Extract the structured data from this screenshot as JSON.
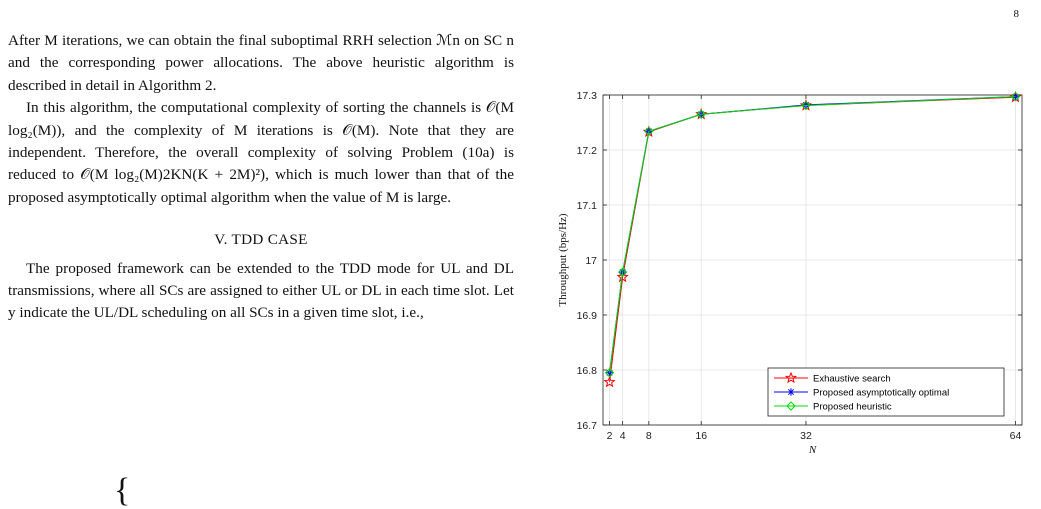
{
  "page": {
    "number": "8"
  },
  "text": {
    "p1": "After M iterations, we can obtain the final suboptimal RRH selection ℳn on SC n and the corresponding power allocations. The above heuristic algorithm is described in detail in Algorithm 2.",
    "p2": "In this algorithm, the computational complexity of sorting the channels is 𝒪(M log₂(M)), and the complexity of M iterations is 𝒪(M). Note that they are independent. Therefore, the overall complexity of solving Problem (10a) is reduced to 𝒪(M log₂(M)2KN(K + 2M)²), which is much lower than that of the proposed asymptotically optimal algorithm when the value of M is large.",
    "heading": "V. TDD CASE",
    "p3": "The proposed framework can be extended to the TDD mode for UL and DL transmissions, where all SCs are assigned to either UL or DL in each time slot. Let y indicate the UL/DL scheduling on all SCs in a given time slot, i.e.,"
  },
  "chart_data": {
    "type": "line",
    "xlabel": "N",
    "ylabel": "Throughput (bps/Hz)",
    "x": [
      2,
      4,
      8,
      16,
      32,
      64
    ],
    "xticks": [
      2,
      4,
      8,
      16,
      32,
      64
    ],
    "yticks": [
      16.7,
      16.8,
      16.9,
      17,
      17.1,
      17.2,
      17.3
    ],
    "yticklabels": [
      "16.7",
      "16.8",
      "16.9",
      "17",
      "17.1",
      "17.2",
      "17.3"
    ],
    "xlim": [
      1,
      65
    ],
    "ylim": [
      16.7,
      17.3
    ],
    "grid": true,
    "legend_position": "bottom-right",
    "series": [
      {
        "name": "Exhaustive search",
        "color": "#ff0000",
        "marker": "star",
        "values": [
          16.778,
          16.969,
          17.233,
          17.265,
          17.281,
          17.296
        ]
      },
      {
        "name": "Proposed asymptotically optimal",
        "color": "#0000ff",
        "marker": "asterisk",
        "values": [
          16.795,
          16.978,
          17.234,
          17.265,
          17.282,
          17.297
        ]
      },
      {
        "name": "Proposed heuristic",
        "color": "#00dd00",
        "marker": "diamond",
        "values": [
          16.795,
          16.978,
          17.234,
          17.265,
          17.281,
          17.297
        ]
      }
    ]
  }
}
